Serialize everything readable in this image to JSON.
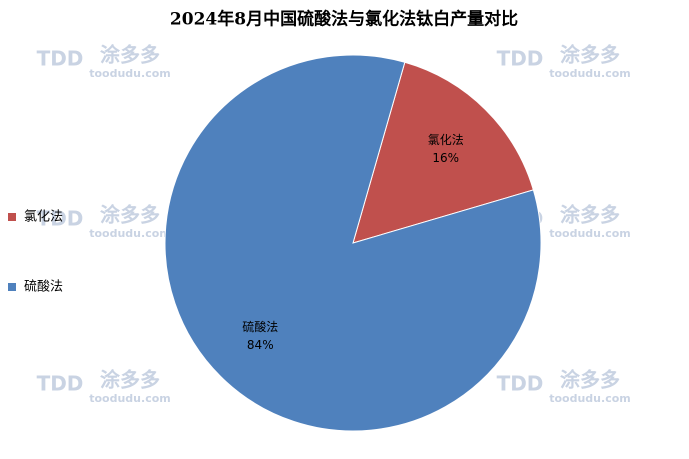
{
  "chart_data": {
    "type": "pie",
    "title": "2024年8月中国硫酸法与氯化法钛白产量对比",
    "categories": [
      "氯化法",
      "硫酸法"
    ],
    "values": [
      16,
      84
    ],
    "value_labels": [
      "16%",
      "84%"
    ],
    "colors": [
      "#c0504d",
      "#4f81bd"
    ],
    "legend": "left"
  },
  "watermark": {
    "logo": "TDD",
    "name": "涂多多",
    "url": "toodudu.com"
  }
}
